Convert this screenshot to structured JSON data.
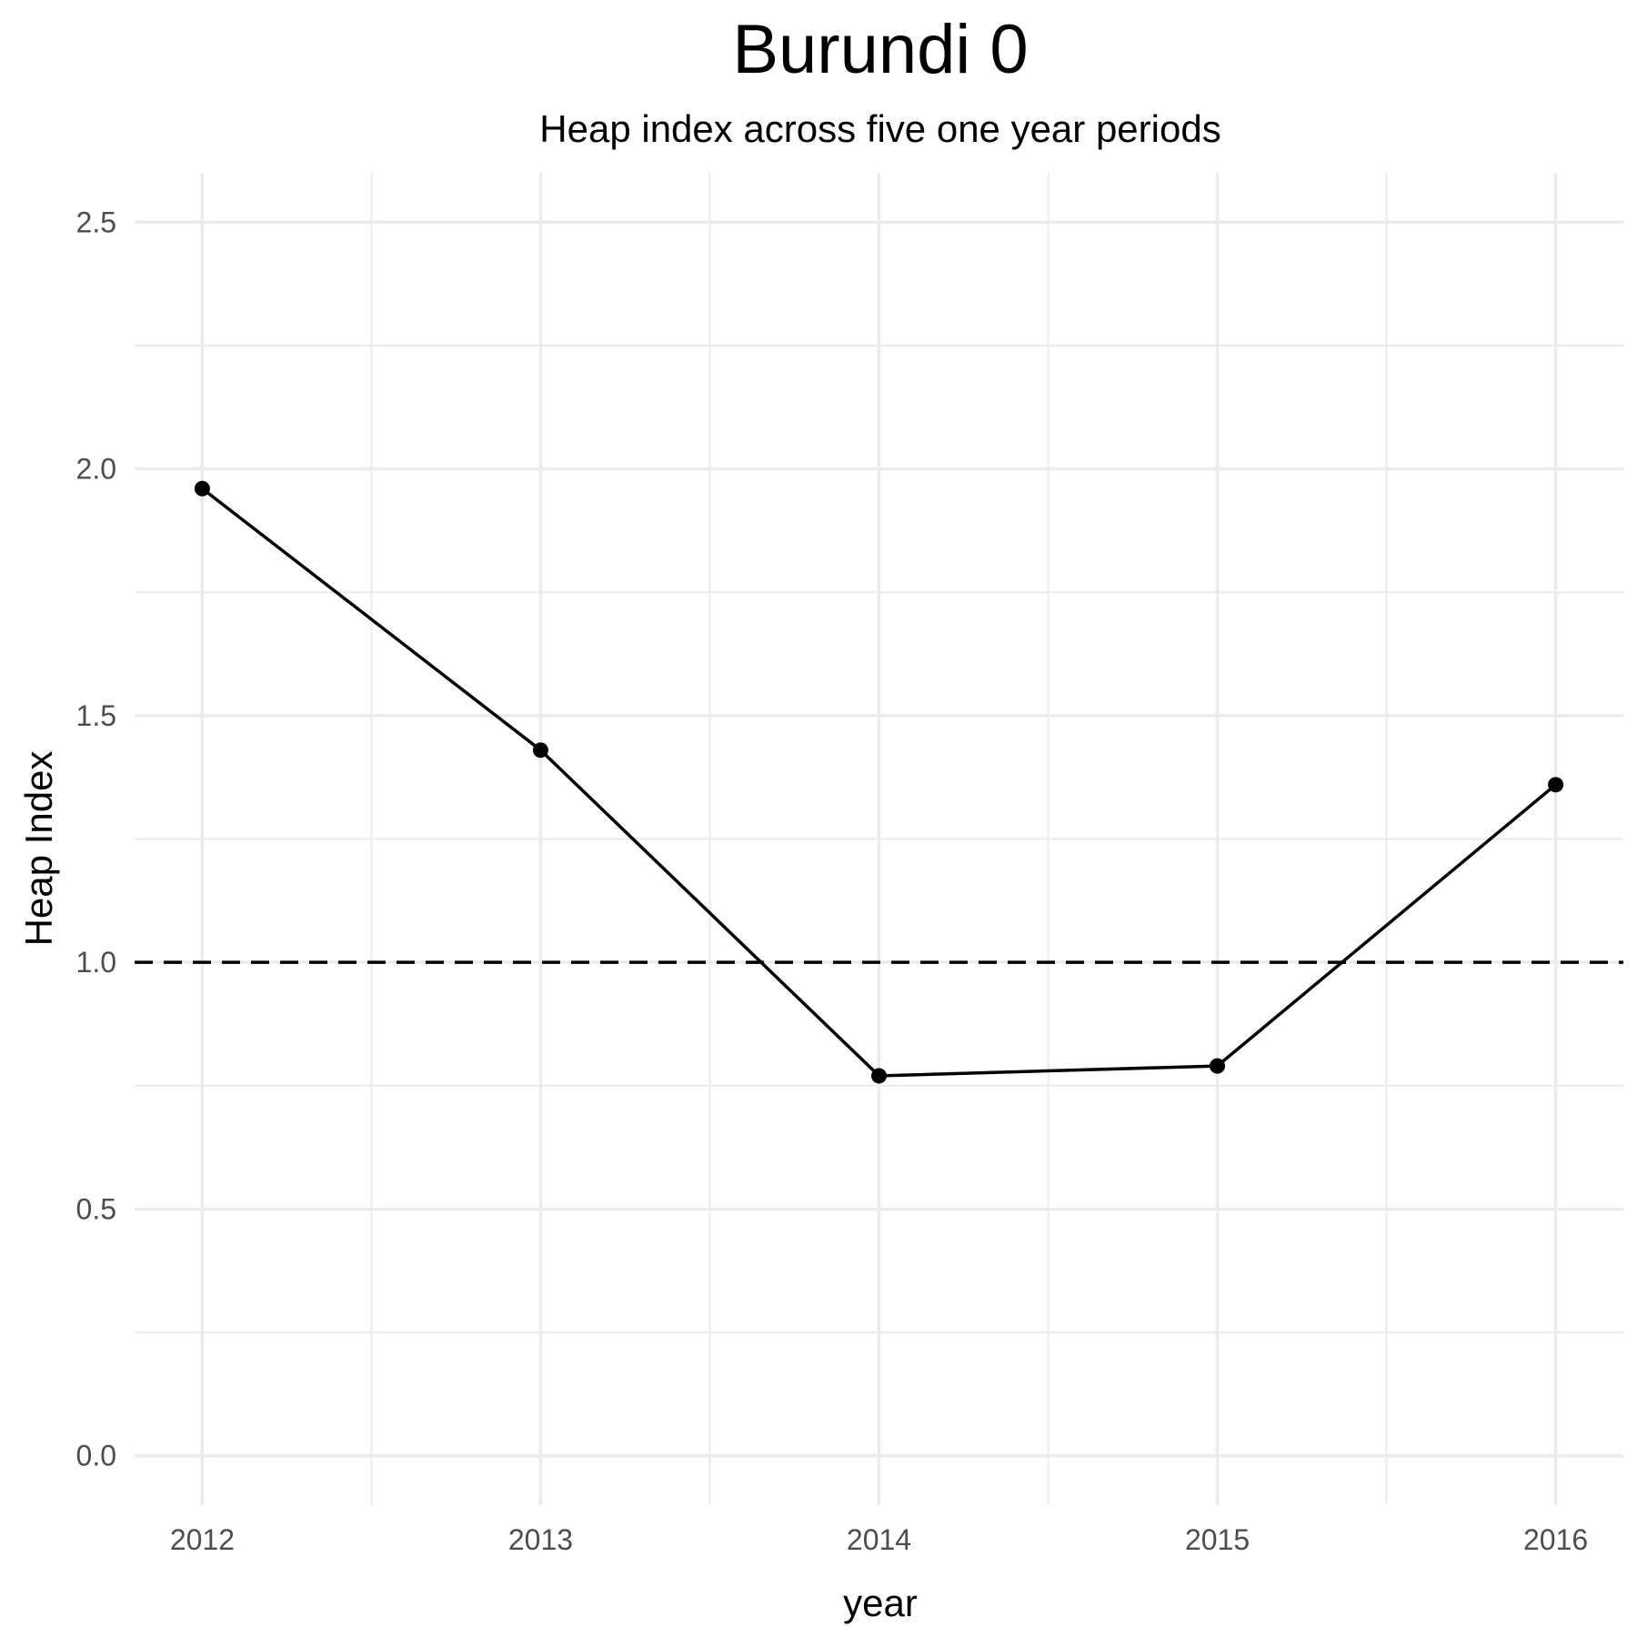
{
  "chart_data": {
    "type": "line",
    "title": "Burundi 0",
    "subtitle": "Heap index across five one year periods",
    "xlabel": "year",
    "ylabel": "Heap Index",
    "x": [
      2012,
      2013,
      2014,
      2015,
      2016
    ],
    "series": [
      {
        "values": [
          1.96,
          1.43,
          0.77,
          0.79,
          1.36
        ]
      }
    ],
    "reference_line": {
      "y": 1.0,
      "style": "dashed"
    },
    "xlim": [
      2011.8,
      2016.2
    ],
    "ylim": [
      -0.1,
      2.6
    ],
    "xticks": [
      "2012",
      "2013",
      "2014",
      "2015",
      "2016"
    ],
    "yticks": [
      "0.0",
      "0.5",
      "1.0",
      "1.5",
      "2.0",
      "2.5"
    ],
    "grid": true,
    "legend": "none",
    "line_color": "#000000",
    "grid_color": "#ebebeb"
  }
}
